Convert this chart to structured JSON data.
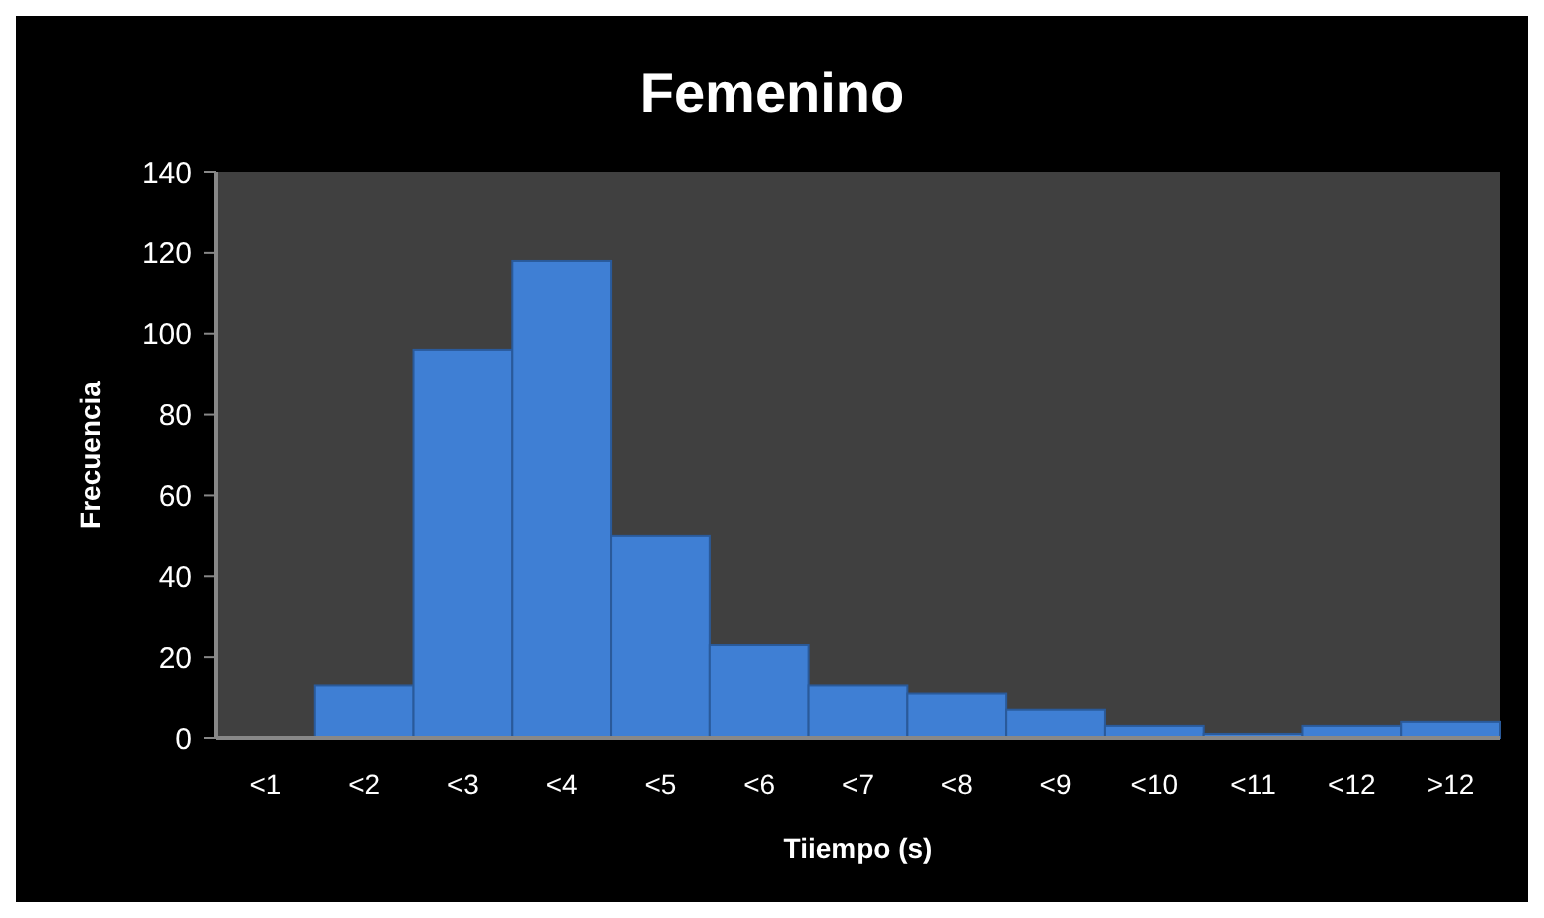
{
  "chart_data": {
    "type": "bar",
    "title": "Femenino",
    "xlabel": "Tiiempo (s)",
    "ylabel": "Frecuencia",
    "categories": [
      "<1",
      "<2",
      "<3",
      "<4",
      "<5",
      "<6",
      "<7",
      "<8",
      "<9",
      "<10",
      "<11",
      "<12",
      ">12"
    ],
    "values": [
      0,
      13,
      96,
      118,
      50,
      23,
      13,
      11,
      7,
      3,
      1,
      3,
      4
    ],
    "color": "#3f7fd4",
    "ylim": [
      0,
      140
    ],
    "yticks": [
      0,
      20,
      40,
      60,
      80,
      100,
      120,
      140
    ],
    "grid": false
  }
}
